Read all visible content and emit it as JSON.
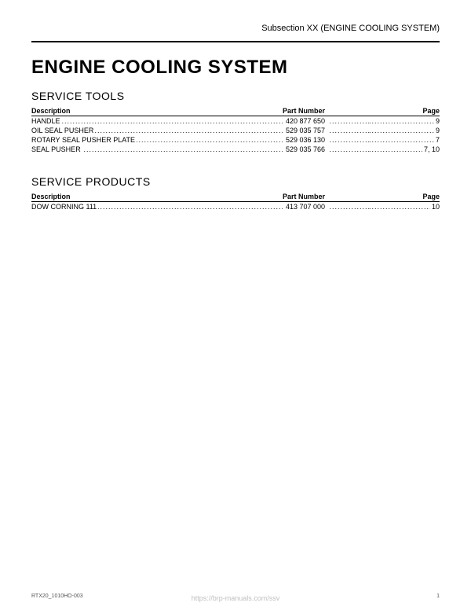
{
  "header": {
    "subsection": "Subsection XX (ENGINE COOLING SYSTEM)"
  },
  "title": "ENGINE COOLING SYSTEM",
  "sections": {
    "tools": {
      "title": "SERVICE TOOLS",
      "columns": {
        "desc": "Description",
        "part": "Part Number",
        "page": "Page"
      },
      "rows": [
        {
          "desc": "HANDLE",
          "part": "420 877 650",
          "page": "9"
        },
        {
          "desc": "OIL SEAL PUSHER",
          "part": "529 035 757",
          "page": "9"
        },
        {
          "desc": "ROTARY SEAL PUSHER PLATE",
          "part": "529 036 130",
          "page": "7"
        },
        {
          "desc": "SEAL PUSHER",
          "part": "529 035 766",
          "page": "7, 10"
        }
      ]
    },
    "products": {
      "title": "SERVICE PRODUCTS",
      "columns": {
        "desc": "Description",
        "part": "Part Number",
        "page": "Page"
      },
      "rows": [
        {
          "desc": "DOW CORNING 111",
          "part": "413 707 000",
          "page": "10"
        }
      ]
    }
  },
  "footer": {
    "doc_code": "RTX20_1010HO-003",
    "page_number": "1",
    "watermark": "https://brp-manuals.com/ssv"
  },
  "style": {
    "background": "#ffffff",
    "text_color": "#000000",
    "watermark_color": "#bfbfbf",
    "title_fontsize": 24,
    "section_title_fontsize": 14,
    "body_fontsize": 9
  }
}
